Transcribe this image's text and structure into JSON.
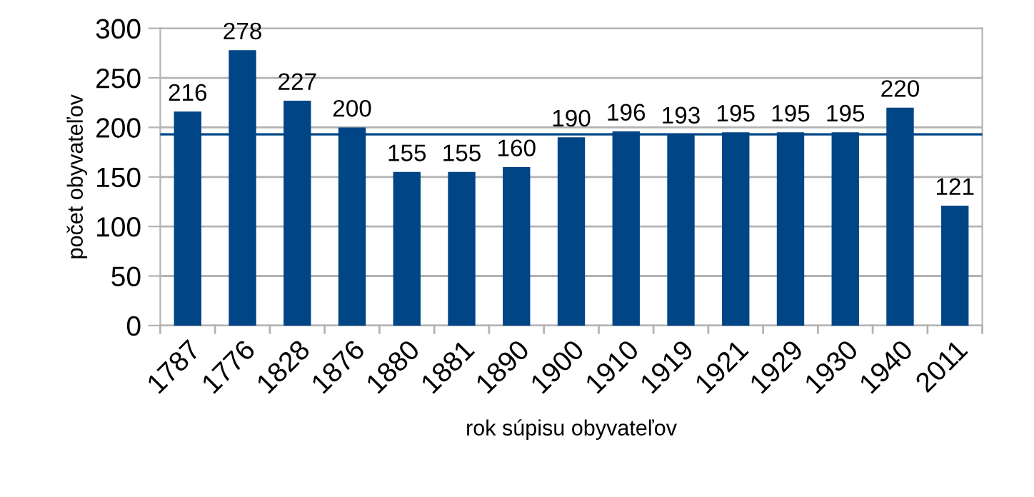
{
  "chart_data": {
    "type": "bar",
    "xlabel": "rok súpisu obyvateľov",
    "ylabel": "počet obyvateľov",
    "categories": [
      "1787",
      "1776",
      "1828",
      "1876",
      "1880",
      "1881",
      "1890",
      "1900",
      "1910",
      "1919",
      "1921",
      "1929",
      "1930",
      "1940",
      "2011"
    ],
    "values": [
      216,
      278,
      227,
      200,
      155,
      155,
      160,
      190,
      196,
      193,
      195,
      195,
      195,
      220,
      121
    ],
    "color": "#004586",
    "data_labels": true,
    "ylim": [
      0,
      300
    ],
    "yticks": [
      0,
      50,
      100,
      150,
      200,
      250,
      300
    ],
    "grid": "y",
    "ref_lines": [
      {
        "axis": "y",
        "value": 193,
        "color": "#004586",
        "line_style": "solid"
      }
    ]
  }
}
